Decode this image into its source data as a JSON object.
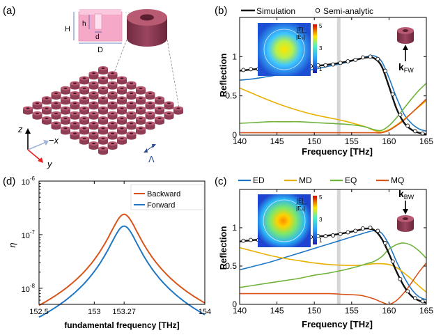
{
  "panel_labels": {
    "a": "(a)",
    "b": "(b)",
    "c": "(c)",
    "d": "(d)"
  },
  "schematic": {
    "dim_H": "H",
    "dim_h": "h",
    "dim_d": "d",
    "dim_D": "D",
    "axis_z": "z",
    "axis_minus_x": "−x",
    "axis_y": "y",
    "period": "Λ",
    "colors": {
      "disk": "#8e3d54",
      "disk_top": "#b75a72",
      "inset_bg": "#f6a8c9"
    }
  },
  "inset_b": {
    "title_top": "|E|",
    "title_bottom": "|E₀|",
    "ticks": [
      "5",
      "3",
      "1"
    ],
    "excitation": "kFW"
  },
  "inset_c": {
    "title_top": "|E|",
    "title_bottom": "|E₀|",
    "ticks": [
      "5",
      "3",
      "1"
    ],
    "excitation": "kBW"
  },
  "chart_data": [
    {
      "id": "b",
      "type": "line",
      "xlabel": "Frequency [THz]",
      "ylabel": "Reflection",
      "xlim": [
        140,
        165
      ],
      "ylim": [
        0,
        1.5
      ],
      "x_ticks": [
        140,
        145,
        150,
        155,
        160,
        165
      ],
      "y_ticks": [
        0,
        0.5,
        1
      ],
      "highlight_x": 153.27,
      "legend": [
        {
          "name": "Simulation",
          "style": "line"
        },
        {
          "name": "Semi-analytic",
          "style": "circle"
        }
      ],
      "x": [
        140,
        142,
        144,
        146,
        148,
        150,
        152,
        154,
        156,
        157,
        158,
        159,
        160,
        161,
        162,
        163,
        164,
        165
      ],
      "series": [
        {
          "name": "Simulation",
          "color": "#111111",
          "width": 2.4,
          "values": [
            0.82,
            0.84,
            0.85,
            0.86,
            0.87,
            0.88,
            0.9,
            0.93,
            0.97,
            0.99,
            0.98,
            0.88,
            0.62,
            0.34,
            0.16,
            0.07,
            0.03,
            0.01
          ]
        },
        {
          "name": "ED",
          "color": "#1f77c4",
          "width": 1.6,
          "values": [
            0.7,
            0.72,
            0.75,
            0.78,
            0.81,
            0.84,
            0.88,
            0.92,
            0.97,
            1.0,
            1.01,
            0.94,
            0.73,
            0.48,
            0.27,
            0.15,
            0.08,
            0.05
          ]
        },
        {
          "name": "MD",
          "color": "#e9b000",
          "width": 1.6,
          "values": [
            0.6,
            0.52,
            0.44,
            0.37,
            0.31,
            0.26,
            0.22,
            0.18,
            0.13,
            0.1,
            0.06,
            0.04,
            0.07,
            0.13,
            0.2,
            0.28,
            0.36,
            0.44
          ]
        },
        {
          "name": "EQ",
          "color": "#6fb33a",
          "width": 1.6,
          "values": [
            0.15,
            0.16,
            0.17,
            0.17,
            0.17,
            0.16,
            0.15,
            0.14,
            0.12,
            0.1,
            0.07,
            0.06,
            0.12,
            0.22,
            0.34,
            0.46,
            0.57,
            0.66
          ]
        },
        {
          "name": "MQ",
          "color": "#d9541a",
          "width": 1.6,
          "values": [
            0.03,
            0.03,
            0.03,
            0.03,
            0.03,
            0.03,
            0.03,
            0.03,
            0.03,
            0.03,
            0.03,
            0.03,
            0.06,
            0.12,
            0.19,
            0.28,
            0.37,
            0.46
          ]
        }
      ],
      "markers": {
        "name": "Semi-analytic",
        "x": [
          140.5,
          141.5,
          142.5,
          143.5,
          144.5,
          145.5,
          146.5,
          147.5,
          148.5,
          149.5,
          150.5,
          151.5,
          152.5,
          153.5,
          154.5,
          155.5,
          156.5,
          157.5,
          158.5,
          159.5,
          160.5,
          161.5,
          162.5,
          163.5,
          164.5
        ],
        "values": [
          0.83,
          0.84,
          0.84,
          0.85,
          0.85,
          0.86,
          0.86,
          0.87,
          0.87,
          0.88,
          0.89,
          0.89,
          0.9,
          0.92,
          0.94,
          0.96,
          0.99,
          1.0,
          0.97,
          0.82,
          0.52,
          0.26,
          0.12,
          0.05,
          0.02
        ]
      }
    },
    {
      "id": "c",
      "type": "line",
      "xlabel": "Frequency [THz]",
      "ylabel": "Reflection",
      "xlim": [
        140,
        165
      ],
      "ylim": [
        0,
        1.5
      ],
      "x_ticks": [
        140,
        145,
        150,
        155,
        160,
        165
      ],
      "y_ticks": [
        0,
        0.5,
        1
      ],
      "highlight_x": 153.27,
      "legend": [
        {
          "name": "ED",
          "color": "#1f77c4"
        },
        {
          "name": "MD",
          "color": "#e9b000"
        },
        {
          "name": "EQ",
          "color": "#6fb33a"
        },
        {
          "name": "MQ",
          "color": "#d9541a"
        }
      ],
      "x": [
        140,
        142,
        144,
        146,
        148,
        150,
        152,
        154,
        156,
        157,
        158,
        159,
        160,
        161,
        162,
        163,
        164,
        165
      ],
      "series": [
        {
          "name": "Simulation",
          "color": "#111111",
          "width": 2.4,
          "values": [
            0.82,
            0.84,
            0.85,
            0.86,
            0.87,
            0.88,
            0.9,
            0.93,
            0.97,
            0.99,
            0.97,
            0.86,
            0.66,
            0.43,
            0.24,
            0.11,
            0.05,
            0.02
          ]
        },
        {
          "name": "ED",
          "color": "#1f77c4",
          "width": 1.6,
          "values": [
            0.45,
            0.5,
            0.55,
            0.61,
            0.67,
            0.73,
            0.79,
            0.85,
            0.91,
            0.94,
            0.96,
            0.93,
            0.78,
            0.56,
            0.36,
            0.2,
            0.1,
            0.06
          ]
        },
        {
          "name": "MD",
          "color": "#e9b000",
          "width": 1.6,
          "values": [
            0.74,
            0.69,
            0.64,
            0.6,
            0.57,
            0.54,
            0.52,
            0.51,
            0.51,
            0.52,
            0.53,
            0.53,
            0.52,
            0.48,
            0.41,
            0.33,
            0.24,
            0.16
          ]
        },
        {
          "name": "EQ",
          "color": "#6fb33a",
          "width": 1.6,
          "values": [
            0.22,
            0.25,
            0.28,
            0.31,
            0.34,
            0.38,
            0.41,
            0.45,
            0.5,
            0.53,
            0.56,
            0.62,
            0.72,
            0.78,
            0.8,
            0.77,
            0.7,
            0.6
          ]
        },
        {
          "name": "MQ",
          "color": "#d9541a",
          "width": 1.6,
          "values": [
            0.14,
            0.14,
            0.14,
            0.14,
            0.14,
            0.14,
            0.14,
            0.13,
            0.12,
            0.1,
            0.07,
            0.03,
            0.0,
            0.05,
            0.15,
            0.28,
            0.42,
            0.54
          ]
        }
      ],
      "markers": {
        "name": "Semi-analytic",
        "x": [
          140.5,
          141.5,
          142.5,
          143.5,
          144.5,
          145.5,
          146.5,
          147.5,
          148.5,
          149.5,
          150.5,
          151.5,
          152.5,
          153.5,
          154.5,
          155.5,
          156.5,
          157.5,
          158.5,
          159.5,
          160.5,
          161.5,
          162.5,
          163.5,
          164.5
        ],
        "values": [
          0.83,
          0.84,
          0.84,
          0.85,
          0.85,
          0.86,
          0.86,
          0.87,
          0.87,
          0.88,
          0.89,
          0.89,
          0.9,
          0.92,
          0.94,
          0.96,
          0.99,
          1.0,
          0.96,
          0.8,
          0.56,
          0.33,
          0.17,
          0.08,
          0.04
        ]
      }
    },
    {
      "id": "d",
      "type": "line",
      "xlabel": "fundamental frequency [THz]",
      "ylabel": "η",
      "yscale": "log",
      "xlim": [
        152.5,
        154
      ],
      "ylim_exp": [
        -8.3,
        -6
      ],
      "x_ticks": [
        152.5,
        153,
        153.27,
        154
      ],
      "x_tick_labels": [
        "152.5",
        "153",
        "153.27",
        "154"
      ],
      "y_ticks": [
        {
          "base": "10",
          "exp": "-8",
          "value": -8
        },
        {
          "base": "10",
          "exp": "-7",
          "value": -7
        },
        {
          "base": "10",
          "exp": "-6",
          "value": -6
        }
      ],
      "legend": [
        {
          "name": "Backward",
          "color": "#d9541a"
        },
        {
          "name": "Forward",
          "color": "#1f77c4"
        }
      ],
      "series": [
        {
          "name": "Backward",
          "color": "#d9541a",
          "peak_x": 153.27,
          "peak_log": -6.62,
          "halfwidth": 0.11
        },
        {
          "name": "Forward",
          "color": "#1f77c4",
          "peak_x": 153.27,
          "peak_log": -6.84,
          "halfwidth": 0.11
        }
      ]
    }
  ]
}
